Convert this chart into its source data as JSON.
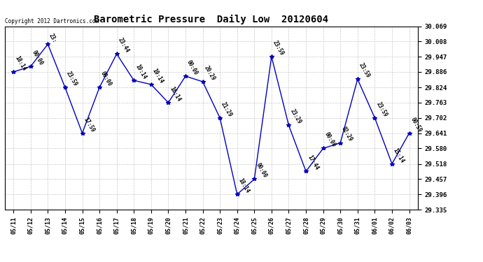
{
  "title": "Barometric Pressure  Daily Low  20120604",
  "copyright": "Copyright 2012 Dartronics.com",
  "x_labels": [
    "05/11",
    "05/12",
    "05/13",
    "05/14",
    "05/15",
    "05/16",
    "05/17",
    "05/18",
    "05/19",
    "05/20",
    "05/21",
    "05/22",
    "05/23",
    "05/24",
    "05/25",
    "05/26",
    "05/27",
    "05/28",
    "05/29",
    "05/30",
    "05/31",
    "06/01",
    "06/02",
    "06/03"
  ],
  "y_values": [
    29.886,
    29.908,
    29.997,
    29.824,
    29.641,
    29.824,
    29.958,
    29.852,
    29.836,
    29.763,
    29.869,
    29.847,
    29.702,
    29.396,
    29.457,
    29.947,
    29.672,
    29.488,
    29.58,
    29.602,
    29.857,
    29.702,
    29.518,
    29.641
  ],
  "point_labels": [
    "18:14",
    "00:00",
    "23:",
    "23:59",
    "17:59",
    "00:00",
    "23:44",
    "19:14",
    "19:14",
    "16:14",
    "00:00",
    "20:29",
    "21:29",
    "18:14",
    "00:00",
    "23:59",
    "23:29",
    "17:44",
    "00:00",
    "02:29",
    "23:59",
    "23:59",
    "15:14",
    "00:59"
  ],
  "ylim_min": 29.335,
  "ylim_max": 30.069,
  "y_ticks": [
    29.335,
    29.396,
    29.457,
    29.518,
    29.58,
    29.641,
    29.702,
    29.763,
    29.824,
    29.886,
    29.947,
    30.008,
    30.069
  ],
  "line_color": "#0000bb",
  "marker_color": "#0000bb",
  "bg_color": "#ffffff",
  "grid_color": "#bbbbbb",
  "title_fontsize": 10,
  "label_fontsize": 6,
  "point_label_fontsize": 5.5,
  "tick_fontsize": 6.5
}
